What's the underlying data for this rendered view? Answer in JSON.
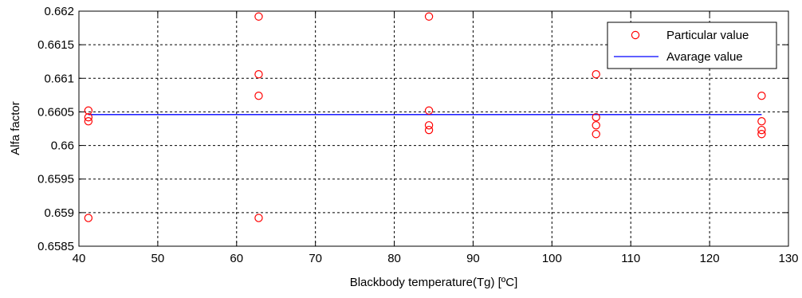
{
  "chart_data": {
    "type": "scatter",
    "title": "",
    "xlabel": "Blackbody temperature(Tg) [ºC]",
    "ylabel": "Alfa factor",
    "xlim": [
      40,
      130
    ],
    "ylim": [
      0.6585,
      0.662
    ],
    "x_ticks": [
      40,
      50,
      60,
      70,
      80,
      90,
      100,
      110,
      120,
      130
    ],
    "x_tick_labels": [
      "40",
      "50",
      "60",
      "70",
      "80",
      "90",
      "100",
      "110",
      "120",
      "130"
    ],
    "y_ticks": [
      0.6585,
      0.659,
      0.6595,
      0.66,
      0.6605,
      0.661,
      0.6615,
      0.662
    ],
    "y_tick_labels": [
      "0.6585",
      "0.659",
      "0.6595",
      "0.66",
      "0.6605",
      "0.661",
      "0.6615",
      "0.662"
    ],
    "grid": true,
    "legend_position": "top-right",
    "series": [
      {
        "name": "Particular value",
        "kind": "scatter",
        "marker": "circle-open",
        "color": "#ff0000",
        "points": [
          {
            "x": 41.2,
            "y": 0.66052
          },
          {
            "x": 41.2,
            "y": 0.66042
          },
          {
            "x": 41.2,
            "y": 0.66036
          },
          {
            "x": 41.2,
            "y": 0.65892
          },
          {
            "x": 62.8,
            "y": 0.66192
          },
          {
            "x": 62.8,
            "y": 0.66106
          },
          {
            "x": 62.8,
            "y": 0.66074
          },
          {
            "x": 62.8,
            "y": 0.65892
          },
          {
            "x": 84.4,
            "y": 0.66192
          },
          {
            "x": 84.4,
            "y": 0.66052
          },
          {
            "x": 84.4,
            "y": 0.6603
          },
          {
            "x": 84.4,
            "y": 0.66023
          },
          {
            "x": 105.6,
            "y": 0.66106
          },
          {
            "x": 105.6,
            "y": 0.66042
          },
          {
            "x": 105.6,
            "y": 0.6603
          },
          {
            "x": 105.6,
            "y": 0.66017
          },
          {
            "x": 126.6,
            "y": 0.66074
          },
          {
            "x": 126.6,
            "y": 0.66036
          },
          {
            "x": 126.6,
            "y": 0.66023
          },
          {
            "x": 126.6,
            "y": 0.66017
          }
        ]
      },
      {
        "name": "Avarage value",
        "kind": "line",
        "color": "#0000ff",
        "x": [
          41.2,
          126.6
        ],
        "y": [
          0.66046,
          0.66046
        ]
      }
    ]
  }
}
